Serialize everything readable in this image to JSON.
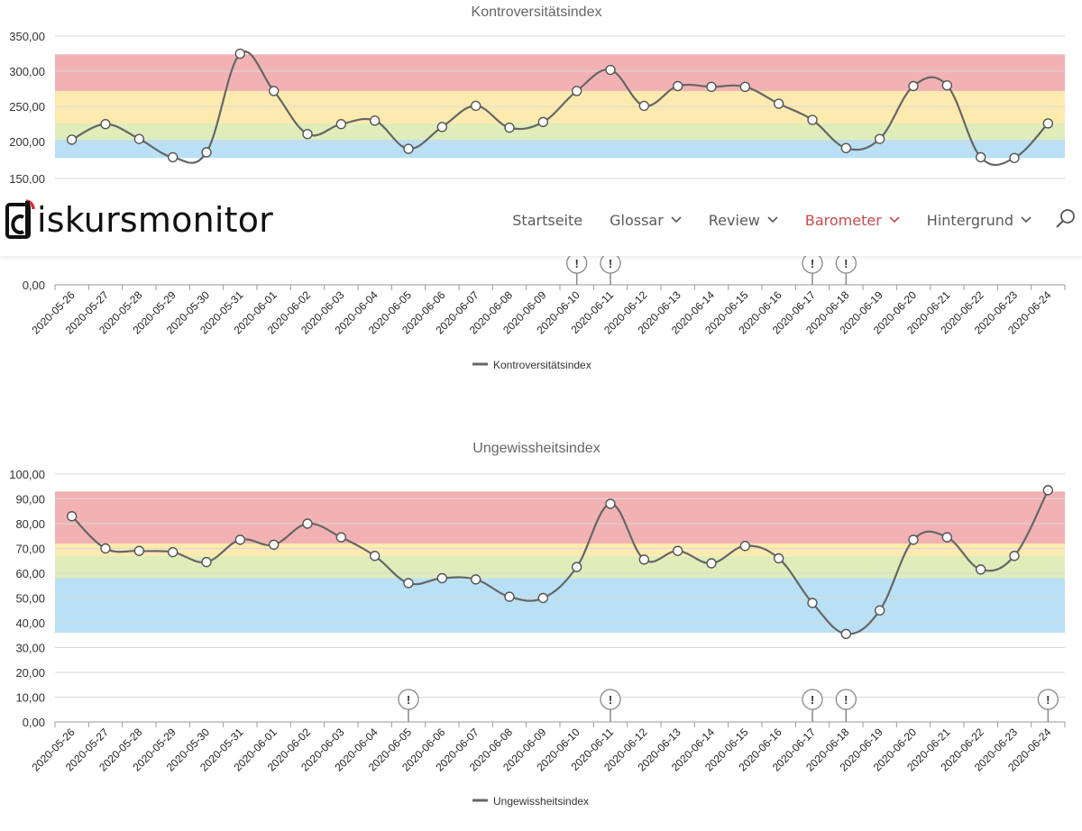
{
  "nav": {
    "logo_text": "iskursmonitor",
    "items": [
      {
        "label": "Startseite",
        "dropdown": false,
        "active": false
      },
      {
        "label": "Glossar",
        "dropdown": true,
        "active": false
      },
      {
        "label": "Review",
        "dropdown": true,
        "active": false
      },
      {
        "label": "Barometer",
        "dropdown": true,
        "active": true
      },
      {
        "label": "Hintergrund",
        "dropdown": true,
        "active": false
      }
    ],
    "active_color": "#c94a4a",
    "text_color": "#5a5a5a",
    "search_icon": "magnifier-icon"
  },
  "chart_data": [
    {
      "type": "line",
      "title": "Kontroversitätsindex",
      "legend": "Kontroversitätsindex",
      "legend_placement": "bottom-center",
      "x": [
        "2020-05-26",
        "2020-05-27",
        "2020-05-28",
        "2020-05-29",
        "2020-05-30",
        "2020-05-31",
        "2020-06-01",
        "2020-06-02",
        "2020-06-03",
        "2020-06-04",
        "2020-06-05",
        "2020-06-06",
        "2020-06-07",
        "2020-06-08",
        "2020-06-09",
        "2020-06-10",
        "2020-06-11",
        "2020-06-12",
        "2020-06-13",
        "2020-06-14",
        "2020-06-15",
        "2020-06-16",
        "2020-06-17",
        "2020-06-18",
        "2020-06-19",
        "2020-06-20",
        "2020-06-21",
        "2020-06-22",
        "2020-06-23",
        "2020-06-24"
      ],
      "values": [
        202,
        224,
        203,
        177,
        184,
        324,
        271,
        210,
        224,
        229,
        189,
        220,
        250,
        219,
        227,
        271,
        301,
        250,
        278,
        277,
        277,
        253,
        230,
        190,
        203,
        278,
        279,
        177,
        176,
        225
      ],
      "y_ticks": [
        "0,00",
        "150,00",
        "200,00",
        "250,00",
        "300,00",
        "350,00"
      ],
      "visible_y_range": [
        150,
        350
      ],
      "grid": true,
      "bands": [
        {
          "from": 176,
          "to": 202,
          "color": "#b9e0f5"
        },
        {
          "from": 202,
          "to": 225,
          "color": "#dfedba"
        },
        {
          "from": 225,
          "to": 271,
          "color": "#fdeaaf"
        },
        {
          "from": 271,
          "to": 323,
          "color": "#f2b2b4"
        }
      ],
      "markers": [
        "2020-06-10",
        "2020-06-11",
        "2020-06-17",
        "2020-06-18"
      ],
      "marker_label": "!"
    },
    {
      "type": "line",
      "title": "Ungewissheitsindex",
      "legend": "Ungewissheitsindex",
      "legend_placement": "bottom-center",
      "x": [
        "2020-05-26",
        "2020-05-27",
        "2020-05-28",
        "2020-05-29",
        "2020-05-30",
        "2020-05-31",
        "2020-06-01",
        "2020-06-02",
        "2020-06-03",
        "2020-06-04",
        "2020-06-05",
        "2020-06-06",
        "2020-06-07",
        "2020-06-08",
        "2020-06-09",
        "2020-06-10",
        "2020-06-11",
        "2020-06-12",
        "2020-06-13",
        "2020-06-14",
        "2020-06-15",
        "2020-06-16",
        "2020-06-17",
        "2020-06-18",
        "2020-06-19",
        "2020-06-20",
        "2020-06-21",
        "2020-06-22",
        "2020-06-23",
        "2020-06-24"
      ],
      "values": [
        83,
        70,
        69,
        68.5,
        64.5,
        73.5,
        71.5,
        80,
        74.5,
        67,
        56,
        58,
        57.5,
        50.5,
        50,
        62.5,
        88,
        65.5,
        69,
        64,
        71,
        66,
        48,
        35.5,
        45,
        73.5,
        74.5,
        61.5,
        67,
        93.5
      ],
      "y_ticks": [
        "0,00",
        "10,00",
        "20,00",
        "30,00",
        "40,00",
        "50,00",
        "60,00",
        "70,00",
        "80,00",
        "90,00",
        "100,00"
      ],
      "ylim": [
        0,
        100
      ],
      "grid": true,
      "bands": [
        {
          "from": 36,
          "to": 58,
          "color": "#b9e0f5"
        },
        {
          "from": 58,
          "to": 67,
          "color": "#dfedba"
        },
        {
          "from": 67,
          "to": 72,
          "color": "#fdeaaf"
        },
        {
          "from": 72,
          "to": 93,
          "color": "#f2b2b4"
        }
      ],
      "markers": [
        "2020-06-05",
        "2020-06-11",
        "2020-06-17",
        "2020-06-18",
        "2020-06-24"
      ],
      "marker_label": "!"
    }
  ]
}
